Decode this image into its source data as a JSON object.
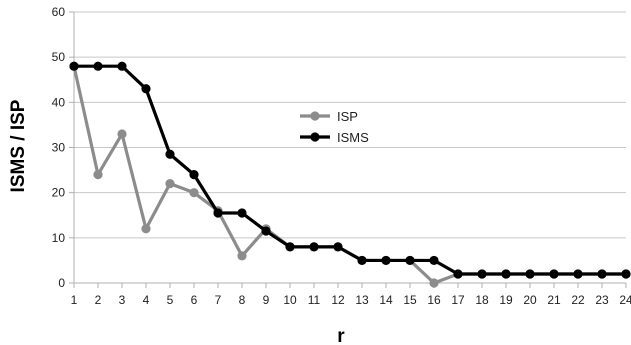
{
  "chart_data": {
    "type": "line",
    "title": "",
    "xlabel": "r",
    "ylabel": "ISMS / ISP",
    "x": [
      1,
      2,
      3,
      4,
      5,
      6,
      7,
      8,
      9,
      10,
      11,
      12,
      13,
      14,
      15,
      16,
      17,
      18,
      19,
      20,
      21,
      22,
      23,
      24
    ],
    "xlim": [
      1,
      24
    ],
    "ylim": [
      0,
      60
    ],
    "yticks": [
      0,
      10,
      20,
      30,
      40,
      50,
      60
    ],
    "grid": "horizontal",
    "legend": "center",
    "series": [
      {
        "name": "ISP",
        "color": "#8c8c8c",
        "values": [
          48,
          24,
          33,
          12,
          22,
          20,
          16,
          6,
          12,
          8,
          8,
          8,
          5,
          5,
          5,
          0,
          2,
          2,
          2,
          2,
          2,
          2,
          2,
          2
        ]
      },
      {
        "name": "ISMS",
        "color": "#000000",
        "values": [
          48,
          48,
          48,
          43,
          28.5,
          24,
          15.5,
          15.5,
          11.5,
          8,
          8,
          8,
          5,
          5,
          5,
          5,
          2,
          2,
          2,
          2,
          2,
          2,
          2,
          2
        ]
      }
    ]
  }
}
